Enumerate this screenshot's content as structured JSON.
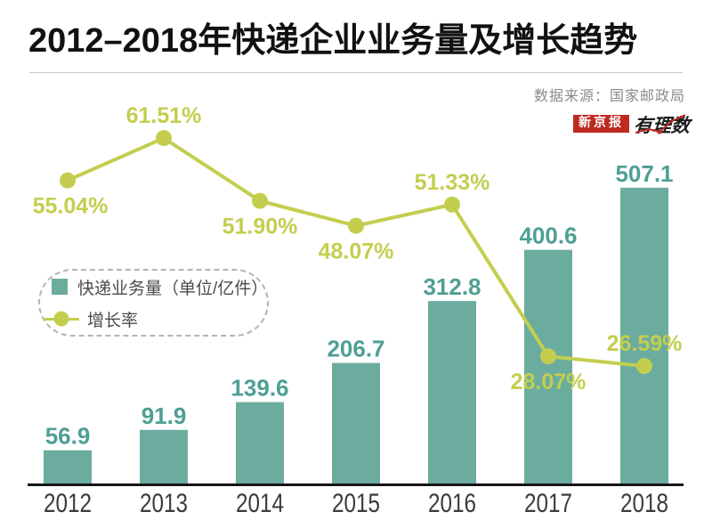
{
  "header": {
    "title": "2012–2018年快递企业业务量及增长趋势",
    "source": "数据来源：国家邮政局",
    "logo": {
      "badge": "新京报",
      "brand": "有理数"
    }
  },
  "legend": {
    "bar_label": "快递业务量（单位/亿件）",
    "line_label": "增长率"
  },
  "colors": {
    "bar": "#6BAC9F",
    "bar_value_label": "#4F9F93",
    "line": "#C3CE4F",
    "axis": "#161616",
    "year_label": "#3B3B3B",
    "title_text": "#111111",
    "source_text": "#8A8A8A",
    "divider": "#C9C9C9",
    "legend_text": "#4C4C4C",
    "logo_red": "#BE2B22"
  },
  "chart_data": {
    "type": "bar+line",
    "title": "2012–2018年快递企业业务量及增长趋势",
    "categories": [
      "2012",
      "2013",
      "2014",
      "2015",
      "2016",
      "2017",
      "2018"
    ],
    "series": [
      {
        "name": "快递业务量（单位/亿件）",
        "type": "bar",
        "values": [
          56.9,
          91.9,
          139.6,
          206.7,
          312.8,
          400.6,
          507.1
        ],
        "labels": [
          "56.9",
          "91.9",
          "139.6",
          "206.7",
          "312.8",
          "400.6",
          "507.1"
        ]
      },
      {
        "name": "增长率",
        "type": "line",
        "unit": "%",
        "values": [
          55.04,
          61.51,
          51.9,
          48.07,
          51.33,
          28.07,
          26.59
        ],
        "labels": [
          "55.04%",
          "61.51%",
          "51.90%",
          "48.07%",
          "51.33%",
          "28.07%",
          "26.59%"
        ]
      }
    ],
    "layout": {
      "growth_label_placement": [
        "below",
        "above",
        "below",
        "below",
        "above",
        "below",
        "above"
      ],
      "legend_position": "middle-left",
      "grid": false,
      "axes": "x-only"
    }
  }
}
